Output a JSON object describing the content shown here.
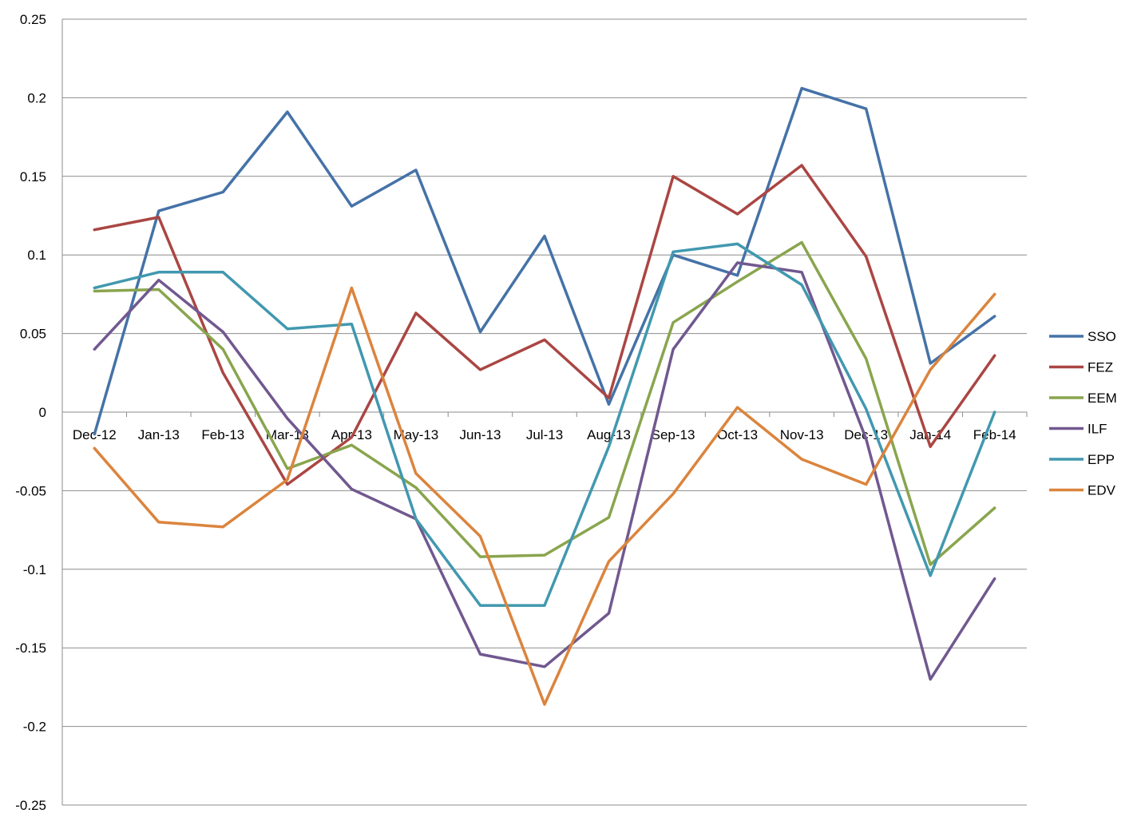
{
  "chart_data": {
    "type": "line",
    "title": "",
    "xlabel": "",
    "ylabel": "",
    "ylim": [
      -0.25,
      0.25
    ],
    "yticks": [
      0.25,
      0.2,
      0.15,
      0.1,
      0.05,
      0,
      -0.05,
      -0.1,
      -0.15,
      -0.2,
      -0.25
    ],
    "ytick_labels": [
      "0.25",
      "0.2",
      "0.15",
      "0.1",
      "0.05",
      "0",
      "-0.05",
      "-0.1",
      "-0.15",
      "-0.2",
      "-0.25"
    ],
    "grid": "horizontal",
    "legend_position": "right",
    "categories": [
      "Dec-12",
      "Jan-13",
      "Feb-13",
      "Mar-13",
      "Apr-13",
      "May-13",
      "Jun-13",
      "Jul-13",
      "Aug-13",
      "Sep-13",
      "Oct-13",
      "Nov-13",
      "Dec-13",
      "Jan-14",
      "Feb-14"
    ],
    "series": [
      {
        "name": "SSO",
        "color": "#4572A7",
        "values": [
          -0.014,
          0.128,
          0.14,
          0.191,
          0.131,
          0.154,
          0.051,
          0.112,
          0.005,
          0.1,
          0.087,
          0.206,
          0.193,
          0.031,
          0.061
        ]
      },
      {
        "name": "FEZ",
        "color": "#AA4643",
        "values": [
          0.116,
          0.124,
          0.025,
          -0.046,
          -0.016,
          0.063,
          0.027,
          0.046,
          0.009,
          0.15,
          0.126,
          0.157,
          0.099,
          -0.022,
          0.036
        ]
      },
      {
        "name": "EEM",
        "color": "#89A54E",
        "values": [
          0.077,
          0.078,
          0.04,
          -0.036,
          -0.021,
          -0.048,
          -0.092,
          -0.091,
          -0.067,
          0.057,
          0.083,
          0.108,
          0.034,
          -0.097,
          -0.061
        ]
      },
      {
        "name": "ILF",
        "color": "#71588F",
        "values": [
          0.04,
          0.084,
          0.051,
          -0.004,
          -0.049,
          -0.068,
          -0.154,
          -0.162,
          -0.128,
          0.04,
          0.095,
          0.089,
          -0.017,
          -0.17,
          -0.106
        ]
      },
      {
        "name": "EPP",
        "color": "#4198AF",
        "values": [
          0.079,
          0.089,
          0.089,
          0.053,
          0.056,
          -0.068,
          -0.123,
          -0.123,
          -0.022,
          0.102,
          0.107,
          0.081,
          0.002,
          -0.104,
          0.0
        ]
      },
      {
        "name": "EDV",
        "color": "#DB843D",
        "values": [
          -0.023,
          -0.07,
          -0.073,
          -0.043,
          0.079,
          -0.039,
          -0.079,
          -0.186,
          -0.095,
          -0.052,
          0.003,
          -0.03,
          -0.046,
          0.027,
          0.075
        ]
      }
    ]
  }
}
